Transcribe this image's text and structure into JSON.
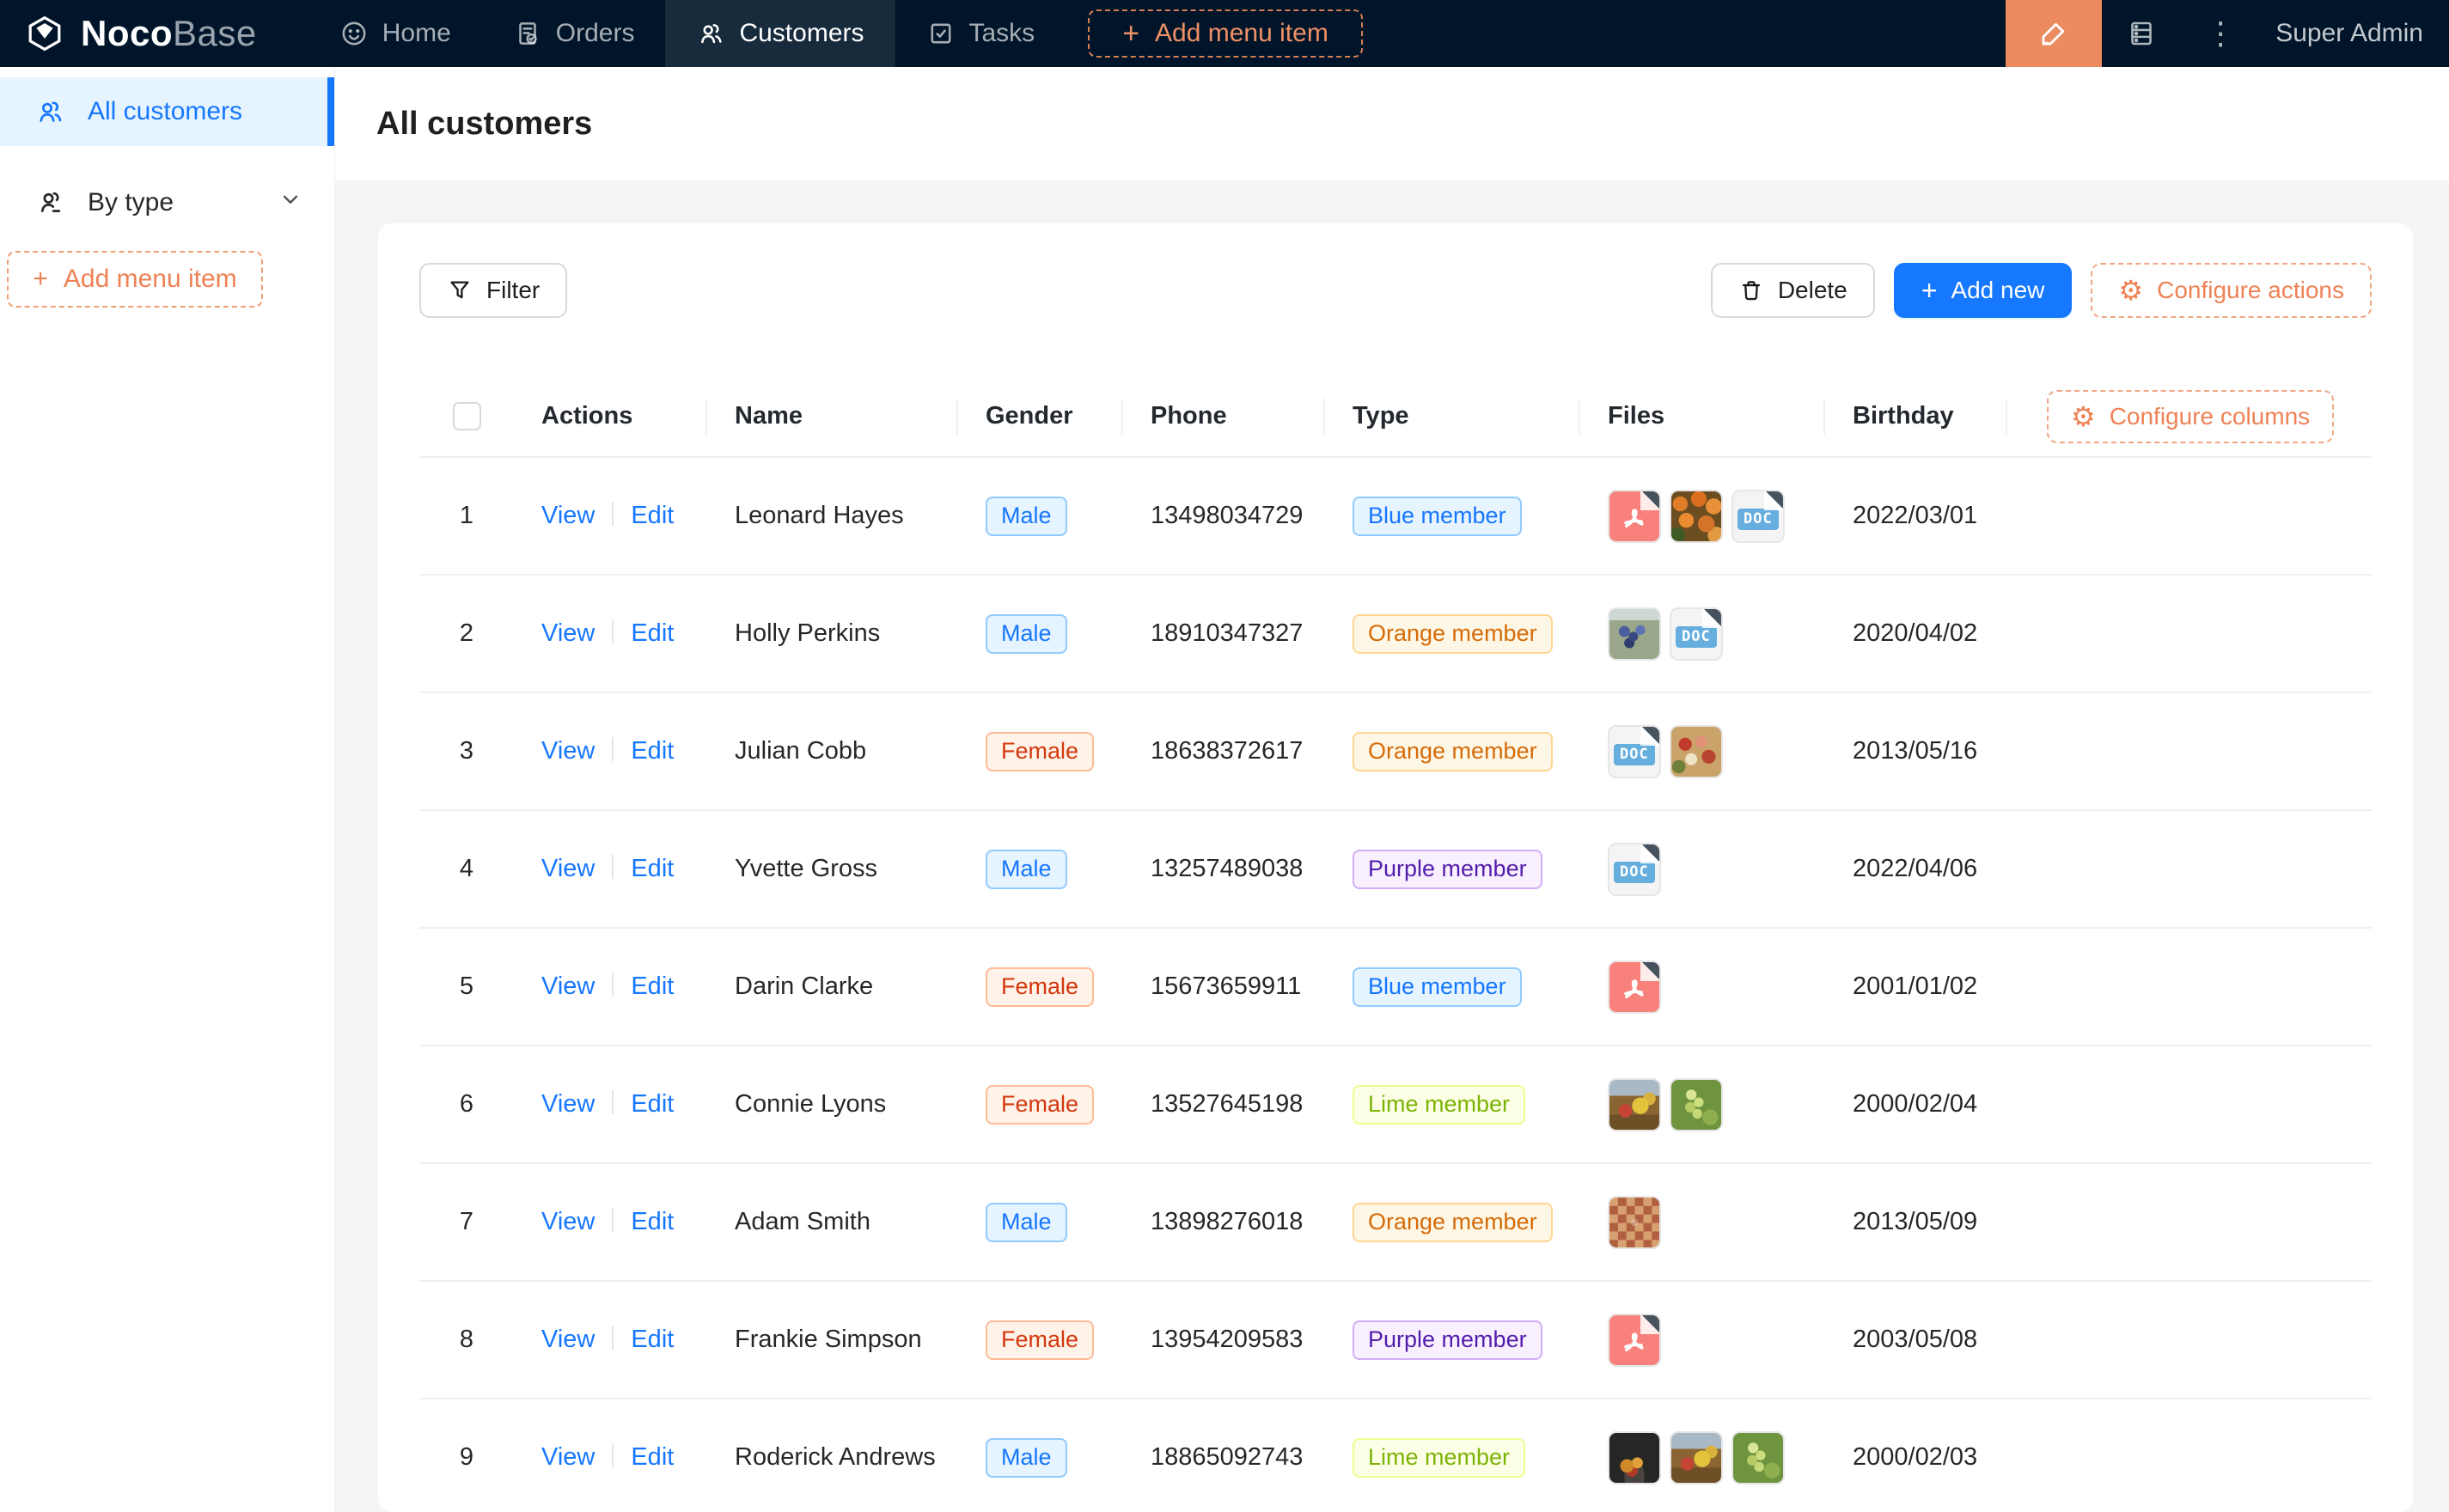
{
  "navbar": {
    "brand_bold": "Noco",
    "brand_light": "Base",
    "items": [
      {
        "label": "Home",
        "icon": "smiley-icon",
        "active": false
      },
      {
        "label": "Orders",
        "icon": "order-document-icon",
        "active": false
      },
      {
        "label": "Customers",
        "icon": "people-icon",
        "active": true
      },
      {
        "label": "Tasks",
        "icon": "task-checkbox-icon",
        "active": false
      }
    ],
    "add_menu_item_label": "Add menu item",
    "user_name": "Super Admin"
  },
  "sidebar": {
    "items": [
      {
        "label": "All customers",
        "icon": "people-icon",
        "active": true
      },
      {
        "label": "By type",
        "icon": "people-group-icon",
        "collapsible": true
      }
    ],
    "add_menu_item_label": "Add menu item"
  },
  "page": {
    "title": "All customers"
  },
  "toolbar": {
    "filter_label": "Filter",
    "delete_label": "Delete",
    "add_new_label": "Add new",
    "configure_actions_label": "Configure actions"
  },
  "icons": {
    "gear": "⚙",
    "plus": "+",
    "kebab": "⋮"
  },
  "colors": {
    "navbar_bg": "#001529",
    "accent_orange": "#ee8255",
    "primary_blue": "#1677ff",
    "sidebar_active_bg": "#e6f4ff",
    "tag_blue": {
      "bg": "#e6f4ff",
      "border": "#91caff",
      "text": "#1677ff"
    },
    "tag_volcano": {
      "bg": "#fff2e8",
      "border": "#ffbb96",
      "text": "#d4380d"
    },
    "tag_orange": {
      "bg": "#fff7e6",
      "border": "#ffd591",
      "text": "#d46b08"
    },
    "tag_purple": {
      "bg": "#f9f0ff",
      "border": "#d3adf7",
      "text": "#531dab"
    },
    "tag_lime": {
      "bg": "#fcffe6",
      "border": "#eaff8f",
      "text": "#7cb305"
    }
  },
  "table": {
    "columns": [
      {
        "key": "selection",
        "label": ""
      },
      {
        "key": "actions",
        "label": "Actions"
      },
      {
        "key": "name",
        "label": "Name"
      },
      {
        "key": "gender",
        "label": "Gender"
      },
      {
        "key": "phone",
        "label": "Phone"
      },
      {
        "key": "type",
        "label": "Type"
      },
      {
        "key": "files",
        "label": "Files"
      },
      {
        "key": "birthday",
        "label": "Birthday"
      }
    ],
    "configure_columns_label": "Configure columns",
    "action_labels": {
      "view": "View",
      "edit": "Edit"
    },
    "file_icons": {
      "doc_label": "DOC",
      "pdf_name": "pdf-file-icon",
      "doc_name": "doc-file-icon"
    },
    "rows": [
      {
        "index": 1,
        "name": "Leonard Hayes",
        "gender": {
          "label": "Male",
          "color": "blue"
        },
        "phone": "13498034729",
        "type": {
          "label": "Blue member",
          "color": "blue"
        },
        "files": [
          "pdf",
          "ph-orange-flowers",
          "doc"
        ],
        "birthday": "2022/03/01"
      },
      {
        "index": 2,
        "name": "Holly Perkins",
        "gender": {
          "label": "Male",
          "color": "blue"
        },
        "phone": "18910347327",
        "type": {
          "label": "Orange member",
          "color": "orange"
        },
        "files": [
          "ph-grapes-blue",
          "doc"
        ],
        "birthday": "2020/04/02"
      },
      {
        "index": 3,
        "name": "Julian Cobb",
        "gender": {
          "label": "Female",
          "color": "volcano"
        },
        "phone": "18638372617",
        "type": {
          "label": "Orange member",
          "color": "orange"
        },
        "files": [
          "doc",
          "ph-food-platter"
        ],
        "birthday": "2013/05/16"
      },
      {
        "index": 4,
        "name": "Yvette Gross",
        "gender": {
          "label": "Male",
          "color": "blue"
        },
        "phone": "13257489038",
        "type": {
          "label": "Purple member",
          "color": "purple"
        },
        "files": [
          "doc"
        ],
        "birthday": "2022/04/06"
      },
      {
        "index": 5,
        "name": "Darin Clarke",
        "gender": {
          "label": "Female",
          "color": "volcano"
        },
        "phone": "15673659911",
        "type": {
          "label": "Blue member",
          "color": "blue"
        },
        "files": [
          "pdf"
        ],
        "birthday": "2001/01/02"
      },
      {
        "index": 6,
        "name": "Connie Lyons",
        "gender": {
          "label": "Female",
          "color": "volcano"
        },
        "phone": "13527645198",
        "type": {
          "label": "Lime member",
          "color": "lime"
        },
        "files": [
          "ph-fruit-still",
          "ph-green-grapes"
        ],
        "birthday": "2000/02/04"
      },
      {
        "index": 7,
        "name": "Adam Smith",
        "gender": {
          "label": "Male",
          "color": "blue"
        },
        "phone": "13898276018",
        "type": {
          "label": "Orange member",
          "color": "orange"
        },
        "files": [
          "ph-food-collage"
        ],
        "birthday": "2013/05/09"
      },
      {
        "index": 8,
        "name": "Frankie Simpson",
        "gender": {
          "label": "Female",
          "color": "volcano"
        },
        "phone": "13954209583",
        "type": {
          "label": "Purple member",
          "color": "purple"
        },
        "files": [
          "pdf"
        ],
        "birthday": "2003/05/08"
      },
      {
        "index": 9,
        "name": "Roderick Andrews",
        "gender": {
          "label": "Male",
          "color": "blue"
        },
        "phone": "18865092743",
        "type": {
          "label": "Lime member",
          "color": "lime"
        },
        "files": [
          "ph-dark-fruit-bowl",
          "ph-fruit-still",
          "ph-green-grapes"
        ],
        "birthday": "2000/02/03"
      }
    ]
  }
}
